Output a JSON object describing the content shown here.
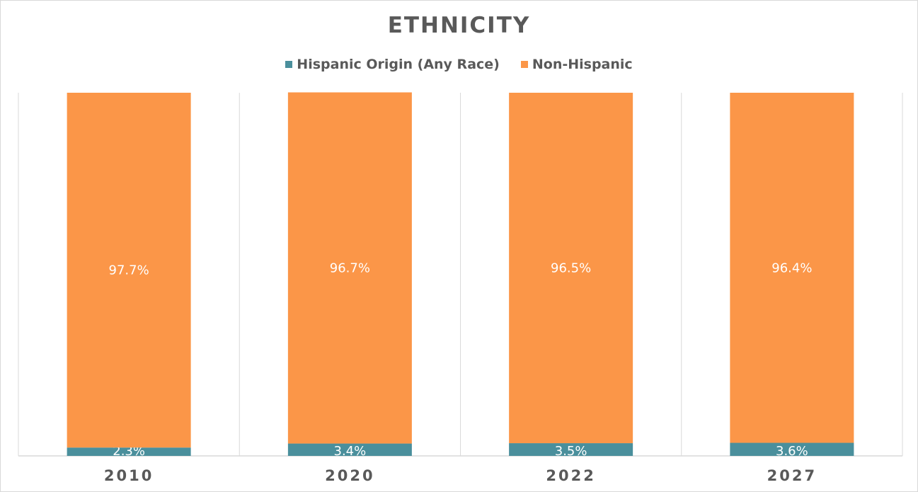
{
  "chart_data": {
    "type": "bar",
    "stacked": true,
    "title": "ETHNICITY",
    "categories": [
      "2010",
      "2020",
      "2022",
      "2027"
    ],
    "series": [
      {
        "name": "Hispanic Origin (Any Race)",
        "color": "#4a8f9c",
        "values": [
          2.3,
          3.4,
          3.5,
          3.6
        ],
        "labels": [
          "2.3%",
          "3.4%",
          "3.5%",
          "3.6%"
        ]
      },
      {
        "name": "Non-Hispanic",
        "color": "#fb9648",
        "values": [
          97.7,
          96.7,
          96.5,
          96.4
        ],
        "labels": [
          "97.7%",
          "96.7%",
          "96.5%",
          "96.4%"
        ]
      }
    ],
    "ylim": [
      0,
      100
    ],
    "legend": "top",
    "grid": "vertical category separators"
  }
}
